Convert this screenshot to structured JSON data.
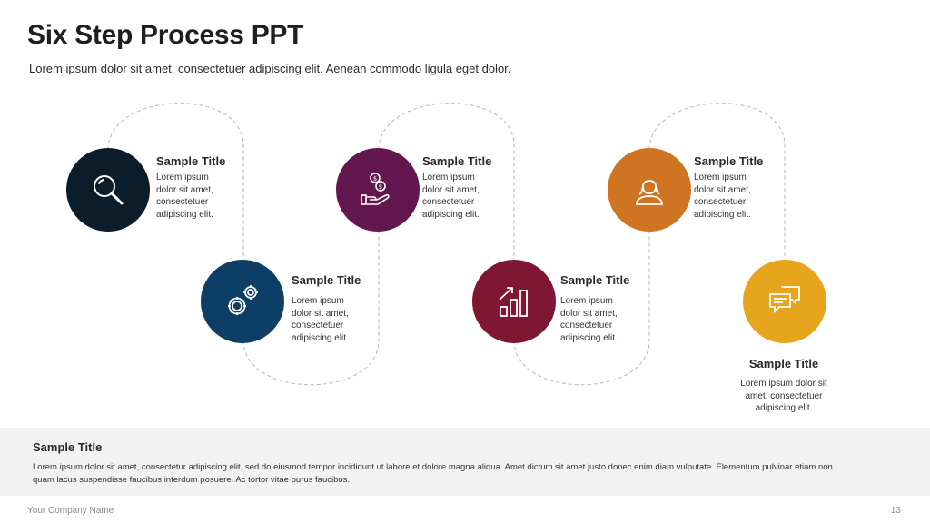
{
  "header": {
    "title": "Six Step Process PPT",
    "subtitle": "Lorem ipsum dolor sit amet, consectetuer adipiscing elit. Aenean commodo ligula eget dolor."
  },
  "steps": [
    {
      "title": "Sample Title",
      "desc": "Lorem ipsum dolor sit amet, consectetuer adipiscing elit.",
      "color": "#0b1d2a",
      "icon": "magnifier-icon"
    },
    {
      "title": "Sample Title",
      "desc": "Lorem ipsum dolor sit amet, consectetuer adipiscing elit.",
      "color": "#0d3f66",
      "icon": "gears-icon"
    },
    {
      "title": "Sample Title",
      "desc": "Lorem ipsum dolor sit amet, consectetuer adipiscing elit.",
      "color": "#63174f",
      "icon": "money-hand-icon"
    },
    {
      "title": "Sample Title",
      "desc": "Lorem ipsum dolor sit amet, consectetuer adipiscing elit.",
      "color": "#7f1634",
      "icon": "growth-chart-icon"
    },
    {
      "title": "Sample Title",
      "desc": "Lorem ipsum dolor sit amet, consectetuer adipiscing elit.",
      "color": "#cf7420",
      "icon": "person-icon"
    },
    {
      "title": "Sample Title",
      "desc": "Lorem ipsum dolor sit amet, consectetuer adipiscing elit.",
      "color": "#e6a51c",
      "icon": "chat-bubbles-icon"
    }
  ],
  "summary": {
    "title": "Sample Title",
    "desc": "Lorem ipsum dolor sit amet, consectetur adipiscing elit, sed do eiusmod tempor incididunt ut labore et dolore magna aliqua. Amet dictum sit amet justo donec enim diam vulputate. Elementum pulvinar etiam non quam lacus suspendisse faucibus interdum posuere. Ac tortor vitae purus faucibus."
  },
  "footer": {
    "company": "Your Company Name",
    "page": "13"
  }
}
